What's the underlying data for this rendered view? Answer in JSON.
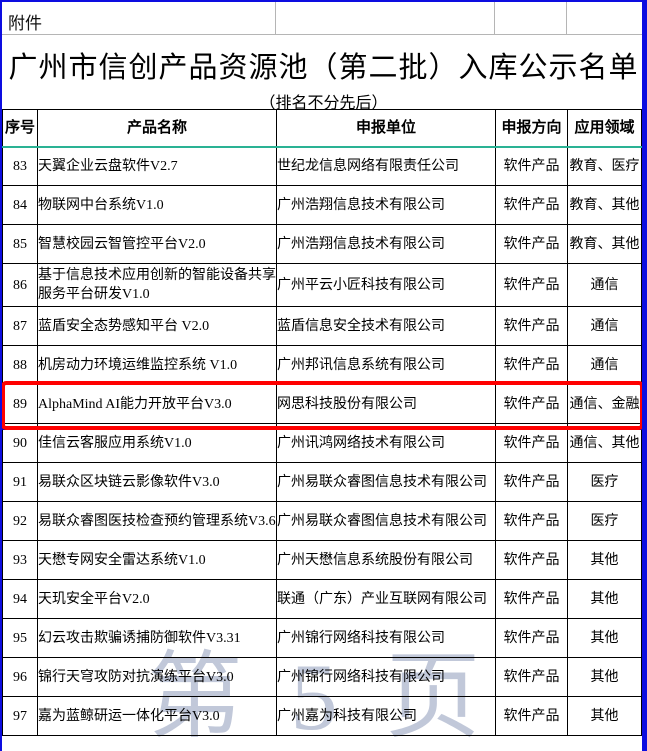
{
  "page": {
    "attachment_label": "附件",
    "title": "广州市信创产品资源池（第二批）入库公示名单",
    "subtitle": "（排名不分先后）",
    "watermark": "第 5 页"
  },
  "table": {
    "headers": [
      "序号",
      "产品名称",
      "申报单位",
      "申报方向",
      "应用领域"
    ],
    "rows": [
      {
        "no": "83",
        "product": "天翼企业云盘软件V2.7",
        "company": "世纪龙信息网络有限责任公司",
        "direction": "软件产品",
        "field": "教育、医疗",
        "highlighted": false,
        "tall": false
      },
      {
        "no": "84",
        "product": "物联网中台系统V1.0",
        "company": "广州浩翔信息技术有限公司",
        "direction": "软件产品",
        "field": "教育、其他",
        "highlighted": false,
        "tall": false
      },
      {
        "no": "85",
        "product": "智慧校园云智管控平台V2.0",
        "company": "广州浩翔信息技术有限公司",
        "direction": "软件产品",
        "field": "教育、其他",
        "highlighted": false,
        "tall": false
      },
      {
        "no": "86",
        "product": "基于信息技术应用创新的智能设备共享服务平台研发V1.0",
        "company": "广州平云小匠科技有限公司",
        "direction": "软件产品",
        "field": "通信",
        "highlighted": false,
        "tall": true
      },
      {
        "no": "87",
        "product": "蓝盾安全态势感知平台 V2.0",
        "company": "蓝盾信息安全技术有限公司",
        "direction": "软件产品",
        "field": "通信",
        "highlighted": false,
        "tall": false
      },
      {
        "no": "88",
        "product": "机房动力环境运维监控系统 V1.0",
        "company": "广州邦讯信息系统有限公司",
        "direction": "软件产品",
        "field": "通信",
        "highlighted": false,
        "tall": false
      },
      {
        "no": "89",
        "product": "AlphaMind AI能力开放平台V3.0",
        "company": "网思科技股份有限公司",
        "direction": "软件产品",
        "field": "通信、金融",
        "highlighted": true,
        "tall": false
      },
      {
        "no": "90",
        "product": "佳信云客服应用系统V1.0",
        "company": "广州讯鸿网络技术有限公司",
        "direction": "软件产品",
        "field": "通信、其他",
        "highlighted": false,
        "tall": false
      },
      {
        "no": "91",
        "product": "易联众区块链云影像软件V3.0",
        "company": "广州易联众睿图信息技术有限公司",
        "direction": "软件产品",
        "field": "医疗",
        "highlighted": false,
        "tall": false
      },
      {
        "no": "92",
        "product": "易联众睿图医技检查预约管理系统V3.6",
        "company": "广州易联众睿图信息技术有限公司",
        "direction": "软件产品",
        "field": "医疗",
        "highlighted": false,
        "tall": false
      },
      {
        "no": "93",
        "product": "天懋专网安全雷达系统V1.0",
        "company": "广州天懋信息系统股份有限公司",
        "direction": "软件产品",
        "field": "其他",
        "highlighted": false,
        "tall": false
      },
      {
        "no": "94",
        "product": "天玑安全平台V2.0",
        "company": "联通（广东）产业互联网有限公司",
        "direction": "软件产品",
        "field": "其他",
        "highlighted": false,
        "tall": false
      },
      {
        "no": "95",
        "product": "幻云攻击欺骗诱捕防御软件V3.31",
        "company": "广州锦行网络科技有限公司",
        "direction": "软件产品",
        "field": "其他",
        "highlighted": false,
        "tall": false
      },
      {
        "no": "96",
        "product": "锦行天穹攻防对抗演练平台V3.0",
        "company": "广州锦行网络科技有限公司",
        "direction": "软件产品",
        "field": "其他",
        "highlighted": false,
        "tall": false
      },
      {
        "no": "97",
        "product": "嘉为蓝鲸研运一体化平台V3.0",
        "company": "广州嘉为科技有限公司",
        "direction": "软件产品",
        "field": "其他",
        "highlighted": false,
        "tall": false
      }
    ]
  },
  "colors": {
    "highlight_border": "#ff0000",
    "page_break_dash": "#0000cc",
    "frame_blue": "#0d0de0",
    "header_divider_teal": "#2ab294",
    "grid": "#000000",
    "gray_line": "#b5b5b5",
    "watermark": "#99a4c0"
  }
}
